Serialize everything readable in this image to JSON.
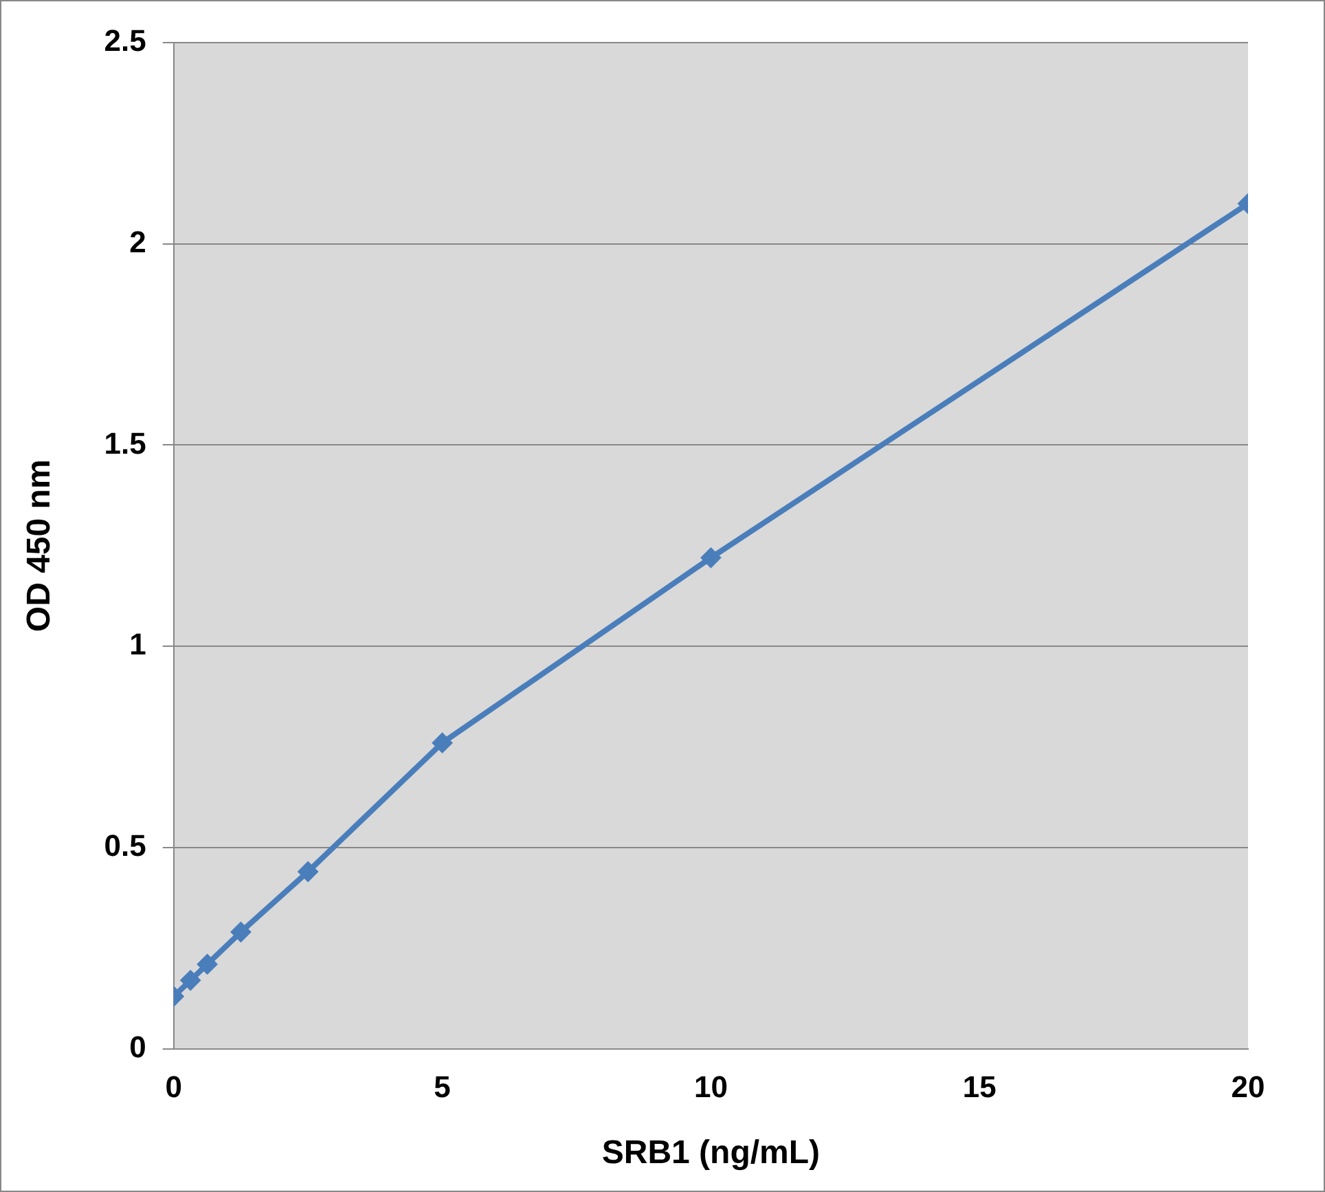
{
  "chart_data": {
    "type": "line",
    "xlabel": "SRB1 (ng/mL)",
    "ylabel": "OD 450 nm",
    "x": [
      0,
      0.3125,
      0.625,
      1.25,
      2.5,
      5,
      10,
      20
    ],
    "series": [
      {
        "color": "#4a7ebb",
        "values": [
          0.13,
          0.17,
          0.21,
          0.29,
          0.44,
          0.76,
          1.22,
          2.1
        ]
      }
    ],
    "xlim": [
      0,
      20
    ],
    "xticks": [
      0,
      5,
      10,
      15,
      20
    ],
    "ylim": [
      0,
      2.5
    ],
    "yticks": [
      0,
      0.5,
      1,
      1.5,
      2,
      2.5
    ],
    "grid": "y",
    "legend": false,
    "marker": "diamond",
    "line_style": "solid"
  }
}
